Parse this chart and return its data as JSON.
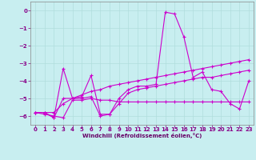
{
  "bg_color": "#c8eef0",
  "grid_color": "#b0dddd",
  "line_color": "#cc00cc",
  "xlabel": "Windchill (Refroidissement éolien,°C)",
  "xlim_min": -0.5,
  "xlim_max": 23.5,
  "ylim_min": -6.5,
  "ylim_max": 0.5,
  "yticks": [
    0,
    -1,
    -2,
    -3,
    -4,
    -5,
    -6
  ],
  "xticks": [
    0,
    1,
    2,
    3,
    4,
    5,
    6,
    7,
    8,
    9,
    10,
    11,
    12,
    13,
    14,
    15,
    16,
    17,
    18,
    19,
    20,
    21,
    22,
    23
  ],
  "line1_x": [
    0,
    1,
    2,
    3,
    4,
    5,
    6,
    7,
    8,
    9,
    10,
    11,
    12,
    13,
    14,
    15,
    16,
    17,
    18,
    19,
    20,
    21,
    22,
    23
  ],
  "line1_y": [
    -5.8,
    -5.8,
    -6.1,
    -3.3,
    -5.0,
    -4.9,
    -3.7,
    -5.9,
    -5.9,
    -5.0,
    -4.5,
    -4.3,
    -4.3,
    -4.2,
    -0.1,
    -0.2,
    -1.5,
    -3.8,
    -3.5,
    -4.5,
    -4.6,
    -5.3,
    -5.6,
    -4.0
  ],
  "line2_x": [
    0,
    1,
    2,
    3,
    4,
    5,
    6,
    7,
    8,
    9,
    10,
    11,
    12,
    13,
    14,
    15,
    16,
    17,
    18,
    19,
    20,
    21,
    22,
    23
  ],
  "line2_y": [
    -5.8,
    -5.8,
    -6.1,
    -5.0,
    -5.0,
    -5.0,
    -4.9,
    -6.0,
    -5.9,
    -5.3,
    -4.7,
    -4.5,
    -4.4,
    -4.3,
    -4.2,
    -4.1,
    -4.0,
    -3.9,
    -3.8,
    -3.8,
    -3.7,
    -3.6,
    -3.5,
    -3.4
  ],
  "line3_x": [
    0,
    1,
    2,
    3,
    4,
    5,
    6,
    7,
    8,
    9,
    10,
    11,
    12,
    13,
    14,
    15,
    16,
    17,
    18,
    19,
    20,
    21,
    22,
    23
  ],
  "line3_y": [
    -5.8,
    -5.8,
    -5.8,
    -5.3,
    -5.0,
    -4.8,
    -4.6,
    -4.5,
    -4.3,
    -4.2,
    -4.1,
    -4.0,
    -3.9,
    -3.8,
    -3.7,
    -3.6,
    -3.5,
    -3.4,
    -3.3,
    -3.2,
    -3.1,
    -3.0,
    -2.9,
    -2.8
  ],
  "line4_x": [
    0,
    1,
    2,
    3,
    4,
    5,
    6,
    7,
    8,
    9,
    10,
    11,
    12,
    13,
    14,
    15,
    16,
    17,
    18,
    19,
    20,
    21,
    22,
    23
  ],
  "line4_y": [
    -5.8,
    -5.9,
    -6.0,
    -6.1,
    -5.1,
    -5.1,
    -5.0,
    -5.1,
    -5.1,
    -5.2,
    -5.2,
    -5.2,
    -5.2,
    -5.2,
    -5.2,
    -5.2,
    -5.2,
    -5.2,
    -5.2,
    -5.2,
    -5.2,
    -5.2,
    -5.2,
    -5.2
  ],
  "tick_fontsize": 5,
  "xlabel_fontsize": 5,
  "tick_color": "#880088",
  "xlabel_color": "#660066"
}
